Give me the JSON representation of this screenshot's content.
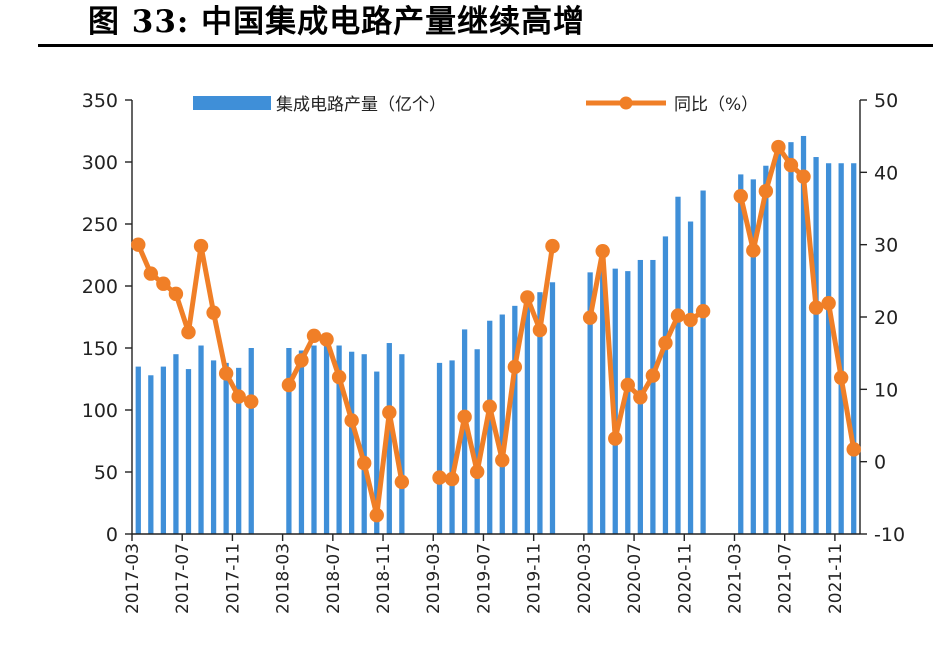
{
  "figure": {
    "title": "图 33:  中国集成电路产量继续高增"
  },
  "chart_data": {
    "type": "bar+line",
    "title": "图 33:  中国集成电路产量继续高增",
    "left_axis": {
      "ylim": [
        0,
        350
      ],
      "ticks": [
        "0",
        "50",
        "100",
        "150",
        "200",
        "250",
        "300",
        "350"
      ]
    },
    "right_axis": {
      "ylim": [
        -10,
        50
      ],
      "ticks": [
        "-10",
        "0",
        "10",
        "20",
        "30",
        "40",
        "50"
      ]
    },
    "x_tick_labels": [
      "2017-03",
      "2017-07",
      "2017-11",
      "2018-03",
      "2018-07",
      "2018-11",
      "2019-03",
      "2019-07",
      "2019-11",
      "2020-03",
      "2020-07",
      "2020-11",
      "2021-03",
      "2021-07",
      "2021-11"
    ],
    "grid": false,
    "legend_position": "top",
    "series": [
      {
        "name": "集成电路产量（亿个）",
        "type": "bar",
        "axis": "left",
        "color": "#3f8fd8",
        "points": [
          [
            "2017-03",
            135
          ],
          [
            "2017-04",
            128
          ],
          [
            "2017-05",
            135
          ],
          [
            "2017-06",
            145
          ],
          [
            "2017-07",
            133
          ],
          [
            "2017-08",
            152
          ],
          [
            "2017-09",
            140
          ],
          [
            "2017-10",
            138
          ],
          [
            "2017-11",
            134
          ],
          [
            "2017-12",
            150
          ],
          [
            "2018-03",
            150
          ],
          [
            "2018-04",
            148
          ],
          [
            "2018-05",
            152
          ],
          [
            "2018-06",
            158
          ],
          [
            "2018-07",
            152
          ],
          [
            "2018-08",
            147
          ],
          [
            "2018-09",
            145
          ],
          [
            "2018-10",
            131
          ],
          [
            "2018-11",
            154
          ],
          [
            "2018-12",
            145
          ],
          [
            "2019-03",
            138
          ],
          [
            "2019-04",
            140
          ],
          [
            "2019-05",
            165
          ],
          [
            "2019-06",
            149
          ],
          [
            "2019-07",
            172
          ],
          [
            "2019-08",
            177
          ],
          [
            "2019-09",
            184
          ],
          [
            "2019-10",
            184
          ],
          [
            "2019-11",
            195
          ],
          [
            "2019-12",
            203
          ],
          [
            "2020-03",
            211
          ],
          [
            "2020-04",
            228
          ],
          [
            "2020-05",
            214
          ],
          [
            "2020-06",
            212
          ],
          [
            "2020-07",
            221
          ],
          [
            "2020-08",
            221
          ],
          [
            "2020-09",
            240
          ],
          [
            "2020-10",
            272
          ],
          [
            "2020-11",
            252
          ],
          [
            "2020-12",
            277
          ],
          [
            "2021-03",
            290
          ],
          [
            "2021-04",
            286
          ],
          [
            "2021-05",
            297
          ],
          [
            "2021-06",
            308
          ],
          [
            "2021-07",
            316
          ],
          [
            "2021-08",
            321
          ],
          [
            "2021-09",
            304
          ],
          [
            "2021-10",
            299
          ],
          [
            "2021-11",
            299
          ],
          [
            "2021-12",
            299
          ]
        ]
      },
      {
        "name": "同比（%）",
        "type": "line",
        "axis": "right",
        "color": "#f07f27",
        "points": [
          [
            "2017-03",
            30.0
          ],
          [
            "2017-04",
            26.0
          ],
          [
            "2017-05",
            24.6
          ],
          [
            "2017-06",
            23.2
          ],
          [
            "2017-07",
            17.9
          ],
          [
            "2017-08",
            29.8
          ],
          [
            "2017-09",
            20.6
          ],
          [
            "2017-10",
            12.2
          ],
          [
            "2017-11",
            9.0
          ],
          [
            "2017-12",
            8.3
          ],
          [
            "2018-03",
            10.6
          ],
          [
            "2018-04",
            14.0
          ],
          [
            "2018-05",
            17.4
          ],
          [
            "2018-06",
            16.9
          ],
          [
            "2018-07",
            11.7
          ],
          [
            "2018-08",
            5.7
          ],
          [
            "2018-09",
            -0.2
          ],
          [
            "2018-10",
            -7.4
          ],
          [
            "2018-11",
            6.8
          ],
          [
            "2018-12",
            -2.8
          ],
          [
            "2019-03",
            -2.2
          ],
          [
            "2019-04",
            -2.4
          ],
          [
            "2019-05",
            6.2
          ],
          [
            "2019-06",
            -1.4
          ],
          [
            "2019-07",
            7.6
          ],
          [
            "2019-08",
            0.2
          ],
          [
            "2019-09",
            13.1
          ],
          [
            "2019-10",
            22.7
          ],
          [
            "2019-11",
            18.2
          ],
          [
            "2019-12",
            29.8
          ],
          [
            "2020-03",
            19.9
          ],
          [
            "2020-04",
            29.1
          ],
          [
            "2020-05",
            3.2
          ],
          [
            "2020-06",
            10.6
          ],
          [
            "2020-07",
            8.9
          ],
          [
            "2020-08",
            11.9
          ],
          [
            "2020-09",
            16.4
          ],
          [
            "2020-10",
            20.2
          ],
          [
            "2020-11",
            19.6
          ],
          [
            "2020-12",
            20.8
          ],
          [
            "2021-03",
            36.7
          ],
          [
            "2021-04",
            29.2
          ],
          [
            "2021-05",
            37.4
          ],
          [
            "2021-06",
            43.5
          ],
          [
            "2021-07",
            41.0
          ],
          [
            "2021-08",
            39.4
          ],
          [
            "2021-09",
            21.3
          ],
          [
            "2021-10",
            21.9
          ],
          [
            "2021-11",
            11.6
          ],
          [
            "2021-12",
            1.7
          ]
        ]
      }
    ]
  }
}
